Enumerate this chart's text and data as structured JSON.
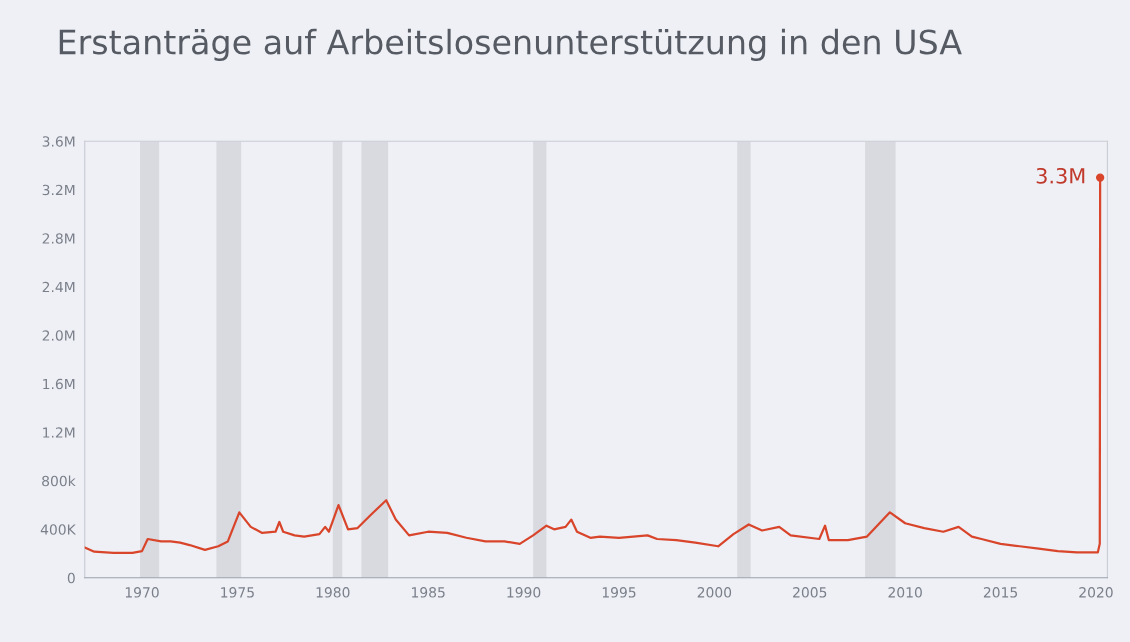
{
  "chart_data": {
    "type": "line",
    "title": "Erstanträge auf Arbeitslosenunterstützung in den USA",
    "series": [
      {
        "color": "#d9452b",
        "x": [
          1967.0,
          1967.5,
          1968.5,
          1969.5,
          1970.0,
          1970.3,
          1971.0,
          1971.5,
          1972.0,
          1972.5,
          1973.3,
          1974.0,
          1974.5,
          1975.1,
          1975.7,
          1976.3,
          1977.0,
          1977.2,
          1977.4,
          1978.0,
          1978.5,
          1979.3,
          1979.6,
          1979.8,
          1980.3,
          1980.8,
          1981.3,
          1982.0,
          1982.8,
          1983.3,
          1984.0,
          1985.0,
          1986.0,
          1987.0,
          1988.0,
          1989.0,
          1989.8,
          1990.5,
          1991.2,
          1991.6,
          1992.2,
          1992.5,
          1992.8,
          1993.5,
          1994.0,
          1995.0,
          1996.5,
          1997.0,
          1998.0,
          1999.0,
          2000.2,
          2001.0,
          2001.8,
          2002.5,
          2003.4,
          2004.0,
          2005.5,
          2005.8,
          2006.0,
          2007.0,
          2008.0,
          2009.2,
          2010.0,
          2011.0,
          2012.0,
          2012.8,
          2013.5,
          2014.0,
          2015.0,
          2016.0,
          2017.0,
          2018.0,
          2019.0,
          2020.1,
          2020.2,
          2020.22
        ],
        "values": [
          250000,
          215000,
          205000,
          205000,
          220000,
          320000,
          300000,
          300000,
          290000,
          270000,
          230000,
          260000,
          300000,
          540000,
          420000,
          370000,
          380000,
          460000,
          380000,
          350000,
          340000,
          360000,
          420000,
          380000,
          600000,
          400000,
          410000,
          520000,
          640000,
          480000,
          350000,
          380000,
          370000,
          330000,
          300000,
          300000,
          280000,
          350000,
          430000,
          400000,
          420000,
          480000,
          380000,
          330000,
          340000,
          330000,
          350000,
          320000,
          310000,
          290000,
          260000,
          360000,
          440000,
          390000,
          420000,
          350000,
          320000,
          430000,
          310000,
          310000,
          340000,
          540000,
          450000,
          410000,
          380000,
          420000,
          340000,
          320000,
          280000,
          260000,
          240000,
          220000,
          210000,
          210000,
          280000,
          3300000
        ]
      }
    ],
    "xlim": [
      1967,
      2020.6
    ],
    "xticks": [
      1970,
      1975,
      1980,
      1985,
      1990,
      1995,
      2000,
      2005,
      2010,
      2015,
      2020
    ],
    "ylim": [
      0,
      3600000
    ],
    "yticks": [
      {
        "value": 0,
        "label": "0"
      },
      {
        "value": 400000,
        "label": "400K"
      },
      {
        "value": 800000,
        "label": "800k"
      },
      {
        "value": 1200000,
        "label": "1.2M"
      },
      {
        "value": 1600000,
        "label": "1.6M"
      },
      {
        "value": 2000000,
        "label": "2.0M"
      },
      {
        "value": 2400000,
        "label": "2.4M"
      },
      {
        "value": 2800000,
        "label": "2.8M"
      },
      {
        "value": 3200000,
        "label": "3.2M"
      },
      {
        "value": 3600000,
        "label": "3.6M"
      }
    ],
    "bands": [
      {
        "axis": "x",
        "from": 1969.9,
        "to": 1970.9,
        "color": "#d8dadf"
      },
      {
        "axis": "x",
        "from": 1973.9,
        "to": 1975.2,
        "color": "#d8dadf"
      },
      {
        "axis": "x",
        "from": 1980.0,
        "to": 1980.5,
        "color": "#d8dadf"
      },
      {
        "axis": "x",
        "from": 1981.5,
        "to": 1982.9,
        "color": "#d8dadf"
      },
      {
        "axis": "x",
        "from": 1990.5,
        "to": 1991.2,
        "color": "#d8dadf"
      },
      {
        "axis": "x",
        "from": 2001.2,
        "to": 2001.9,
        "color": "#d8dadf"
      },
      {
        "axis": "x",
        "from": 2007.9,
        "to": 2009.5,
        "color": "#d8dadf"
      }
    ],
    "annotations": [
      {
        "text": "3.3M",
        "x": 2020.22,
        "y": 3300000
      }
    ],
    "grid": false,
    "legend": false
  }
}
